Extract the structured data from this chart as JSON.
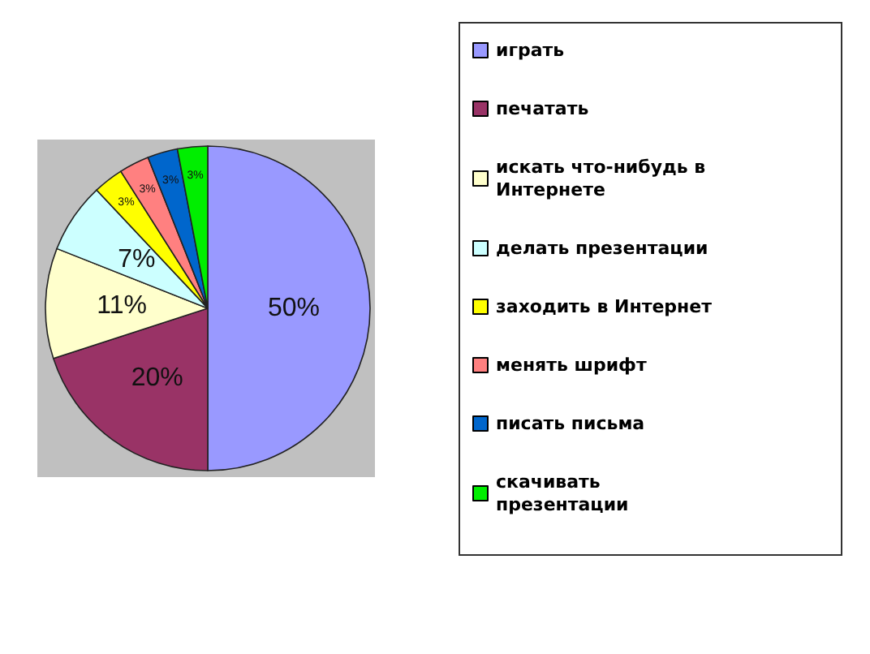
{
  "chart_data": {
    "type": "pie",
    "categories": [
      "играть",
      "печатать",
      "искать что-нибудь в Интернете",
      "делать презентации",
      "заходить в Интернет",
      "менять шрифт",
      "писать письма",
      "скачивать презентации"
    ],
    "values": [
      50,
      20,
      11,
      7,
      3,
      3,
      3,
      3
    ],
    "colors": [
      "#9999ff",
      "#993366",
      "#ffffcc",
      "#ccffff",
      "#ffff00",
      "#ff8080",
      "#0066cc",
      "#00ee00"
    ],
    "value_labels": [
      "50%",
      "20%",
      "11%",
      "7%",
      "3%",
      "3%",
      "3%",
      "3%"
    ],
    "legend": "right"
  }
}
